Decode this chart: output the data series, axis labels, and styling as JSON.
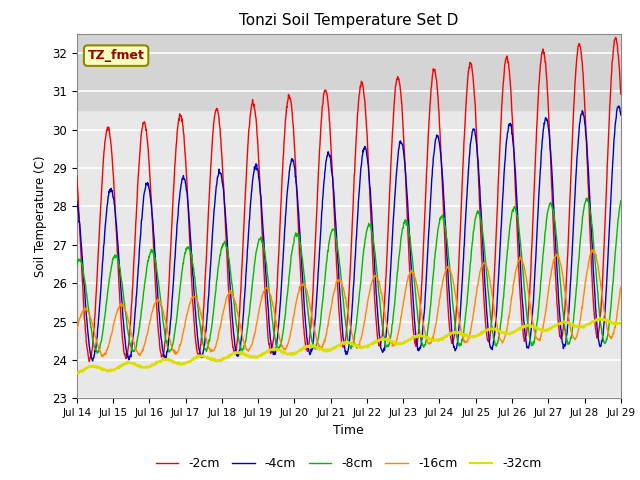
{
  "title": "Tonzi Soil Temperature Set D",
  "xlabel": "Time",
  "ylabel": "Soil Temperature (C)",
  "ylim": [
    23.0,
    32.5
  ],
  "xlim": [
    0,
    360
  ],
  "yticks": [
    23.0,
    24.0,
    25.0,
    26.0,
    27.0,
    28.0,
    29.0,
    30.0,
    31.0,
    32.0
  ],
  "xtick_labels": [
    "Jul 14",
    "Jul 15",
    "Jul 16",
    "Jul 17",
    "Jul 18",
    "Jul 19",
    "Jul 20",
    "Jul 21",
    "Jul 22",
    "Jul 23",
    "Jul 24",
    "Jul 25",
    "Jul 26",
    "Jul 27",
    "Jul 28",
    "Jul 29"
  ],
  "xtick_positions": [
    0,
    24,
    48,
    72,
    96,
    120,
    144,
    168,
    192,
    216,
    240,
    264,
    288,
    312,
    336,
    360
  ],
  "colors": {
    "-2cm": "#ff0000",
    "-4cm": "#0000cc",
    "-8cm": "#00bb00",
    "-16cm": "#ff8800",
    "-32cm": "#dddd00"
  },
  "legend_label": "TZ_fmet",
  "plot_bg": "#e8e8e8",
  "upper_shade": "#d4d4d4",
  "upper_shade_ymin": 30.5,
  "upper_shade_ymax": 32.5
}
